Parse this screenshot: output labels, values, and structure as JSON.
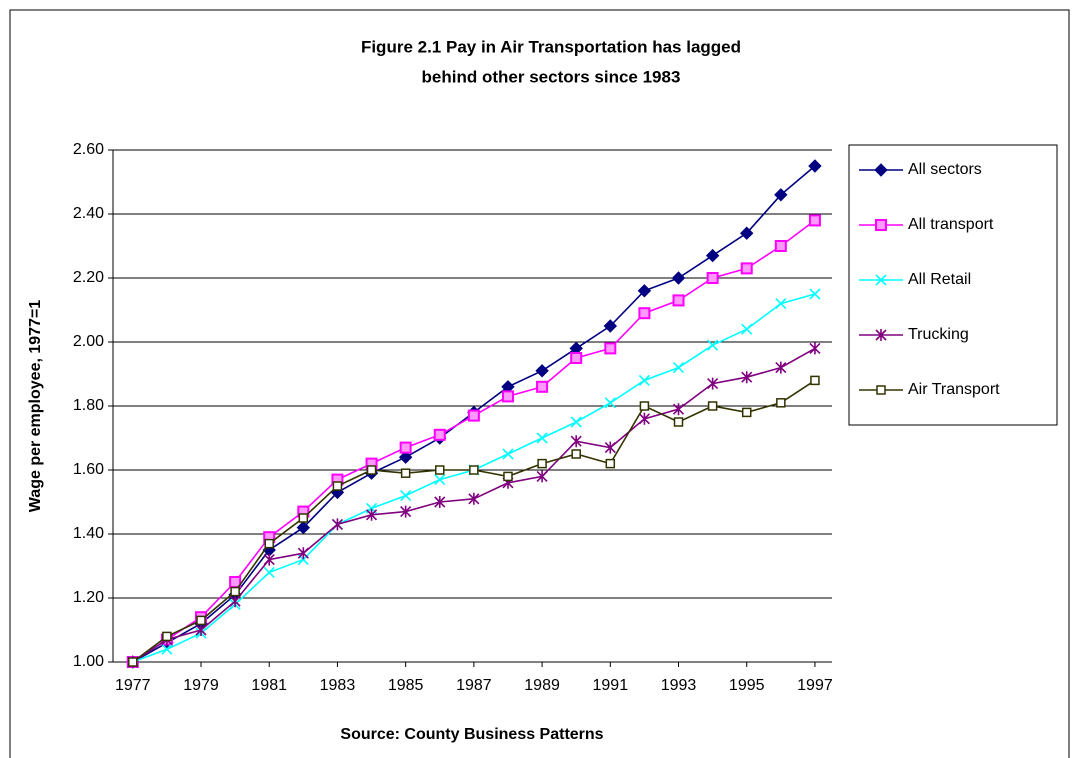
{
  "chart_data": {
    "type": "line",
    "title": [
      "Figure 2.1    Pay in Air Transportation has lagged",
      "behind other sectors since 1983"
    ],
    "y_label": "Wage per employee, 1977=1",
    "x_label": "Source: County Business Patterns",
    "x": [
      1977,
      1978,
      1979,
      1980,
      1981,
      1982,
      1983,
      1984,
      1985,
      1986,
      1987,
      1988,
      1989,
      1990,
      1991,
      1992,
      1993,
      1994,
      1995,
      1996,
      1997
    ],
    "xlim": [
      1976.42,
      1997.5
    ],
    "xticks": [
      1977,
      1979,
      1981,
      1983,
      1985,
      1987,
      1989,
      1991,
      1993,
      1995,
      1997
    ],
    "ylim": [
      1,
      2.6
    ],
    "yticks": [
      {
        "value": 1,
        "label": "1.00"
      },
      {
        "value": 1.2,
        "label": "1.20"
      },
      {
        "value": 1.4,
        "label": "1.40"
      },
      {
        "value": 1.6,
        "label": "1.60"
      },
      {
        "value": 1.8,
        "label": "1.80"
      },
      {
        "value": 2,
        "label": "2.00"
      },
      {
        "value": 2.2,
        "label": "2.20"
      },
      {
        "value": 2.4,
        "label": "2.40"
      },
      {
        "value": 2.6,
        "label": "2.60"
      }
    ],
    "grid": true,
    "legend": "right",
    "series": [
      {
        "name": "All sectors",
        "color": "#000080",
        "marker": "diamond",
        "values": [
          1.0,
          1.06,
          1.12,
          1.21,
          1.35,
          1.42,
          1.53,
          1.59,
          1.64,
          1.7,
          1.78,
          1.86,
          1.91,
          1.98,
          2.05,
          2.16,
          2.2,
          2.27,
          2.34,
          2.46,
          2.55
        ]
      },
      {
        "name": "All transport",
        "color": "#ff00ff",
        "marker": "square",
        "values": [
          1.0,
          1.07,
          1.14,
          1.25,
          1.39,
          1.47,
          1.57,
          1.62,
          1.67,
          1.71,
          1.77,
          1.83,
          1.86,
          1.95,
          1.98,
          2.09,
          2.13,
          2.2,
          2.23,
          2.3,
          2.38
        ]
      },
      {
        "name": "All Retail",
        "color": "#00ffff",
        "marker": "x",
        "values": [
          1.0,
          1.04,
          1.09,
          1.18,
          1.28,
          1.32,
          1.43,
          1.48,
          1.52,
          1.57,
          1.6,
          1.65,
          1.7,
          1.75,
          1.81,
          1.88,
          1.92,
          1.99,
          2.04,
          2.12,
          2.15
        ]
      },
      {
        "name": "Trucking",
        "color": "#800080",
        "marker": "star",
        "values": [
          1.0,
          1.07,
          1.1,
          1.19,
          1.32,
          1.34,
          1.43,
          1.46,
          1.47,
          1.5,
          1.51,
          1.56,
          1.58,
          1.69,
          1.67,
          1.76,
          1.79,
          1.87,
          1.89,
          1.92,
          1.98
        ]
      },
      {
        "name": "Air Transport",
        "color": "#333300",
        "marker": "open-square",
        "values": [
          1.0,
          1.08,
          1.13,
          1.22,
          1.37,
          1.45,
          1.55,
          1.6,
          1.59,
          1.6,
          1.6,
          1.58,
          1.62,
          1.65,
          1.62,
          1.8,
          1.75,
          1.8,
          1.78,
          1.81,
          1.88
        ]
      }
    ]
  }
}
